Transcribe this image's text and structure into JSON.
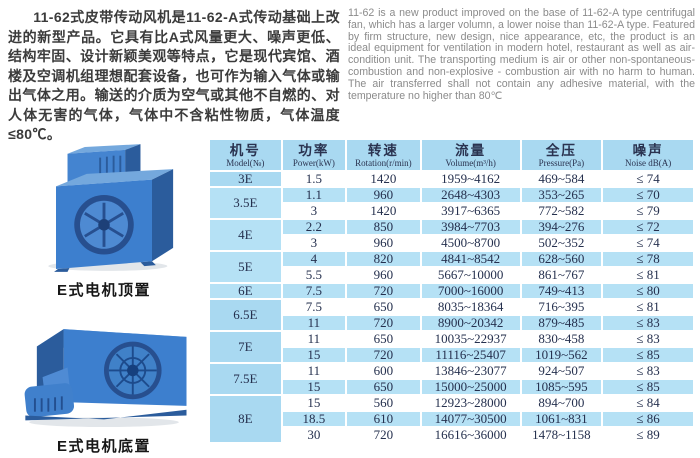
{
  "intro": {
    "chinese": "11-62式皮带传动风机是11-62-A式传动基础上改进的新型产品。它具有比A式风量更大、噪声更低、结构牢固、设计新颖美观等特点，它是现代宾馆、酒楼及空调机组理想配套设备，也可作为输入气体或输出气体之用。输送的介质为空气或其他不自燃的、对人体无害的气体，气体中不含粘性物质，气体温度≤80℃。",
    "english": "11-62 is a new product improved on the base of 11-62-A type centrifugal fan, which has a larger volumn, a lower noise than 11-62-A type. Featured by firm structure, new design, nice appearance, etc, the product is an ideal equipment for ventilation in modern hotel, restaurant as well as air-condition unit. The transporting medium is air or other non-spontaneous-combustion and non-explosive - combustion air with no harm to human. The air transferred shall not contain any adhesive material, with the temperature no higher than 80℃"
  },
  "figures": [
    {
      "caption": "E式电机顶置"
    },
    {
      "caption": "E式电机底置"
    }
  ],
  "table": {
    "columns": [
      {
        "zh": "机号",
        "en": "Model(№)"
      },
      {
        "zh": "功率",
        "en": "Power(kW)"
      },
      {
        "zh": "转速",
        "en": "Rotation(r/min)"
      },
      {
        "zh": "流量",
        "en": "Volume(m³/h)"
      },
      {
        "zh": "全压",
        "en": "Pressure(Pa)"
      },
      {
        "zh": "噪声",
        "en": "Noise dB(A)"
      }
    ],
    "groups": [
      {
        "model": "3E",
        "rows": [
          [
            "1.5",
            "1420",
            "1959~4162",
            "469~584",
            "≤ 74"
          ]
        ]
      },
      {
        "model": "3.5E",
        "rows": [
          [
            "1.1",
            "960",
            "2648~4303",
            "353~265",
            "≤ 70"
          ],
          [
            "3",
            "1420",
            "3917~6365",
            "772~582",
            "≤ 79"
          ]
        ]
      },
      {
        "model": "4E",
        "rows": [
          [
            "2.2",
            "850",
            "3984~7703",
            "394~276",
            "≤ 72"
          ],
          [
            "3",
            "960",
            "4500~8700",
            "502~352",
            "≤ 74"
          ]
        ]
      },
      {
        "model": "5E",
        "rows": [
          [
            "4",
            "820",
            "4841~8542",
            "628~560",
            "≤ 78"
          ],
          [
            "5.5",
            "960",
            "5667~10000",
            "861~767",
            "≤ 81"
          ]
        ]
      },
      {
        "model": "6E",
        "rows": [
          [
            "7.5",
            "720",
            "7000~16000",
            "749~413",
            "≤ 80"
          ]
        ]
      },
      {
        "model": "6.5E",
        "rows": [
          [
            "7.5",
            "650",
            "8035~18364",
            "716~395",
            "≤ 81"
          ],
          [
            "11",
            "720",
            "8900~20342",
            "879~485",
            "≤ 83"
          ]
        ]
      },
      {
        "model": "7E",
        "rows": [
          [
            "11",
            "650",
            "10035~22937",
            "830~458",
            "≤ 83"
          ],
          [
            "15",
            "720",
            "11116~25407",
            "1019~562",
            "≤ 85"
          ]
        ]
      },
      {
        "model": "7.5E",
        "rows": [
          [
            "11",
            "600",
            "13846~23077",
            "924~507",
            "≤ 83"
          ],
          [
            "15",
            "650",
            "15000~25000",
            "1085~595",
            "≤ 85"
          ]
        ]
      },
      {
        "model": "8E",
        "rows": [
          [
            "15",
            "560",
            "12923~28000",
            "894~700",
            "≤ 84"
          ],
          [
            "18.5",
            "610",
            "14077~30500",
            "1061~831",
            "≤ 86"
          ],
          [
            "30",
            "720",
            "16616~36000",
            "1478~1158",
            "≤ 89"
          ]
        ]
      }
    ]
  },
  "colors": {
    "header_blue": "#a9d9f1",
    "alt_row_blue": "#b5e1f5",
    "table_text_navy": "#25304e",
    "fan_blue": "#3d7fce",
    "fan_blue_dark": "#2b5c9c",
    "fan_blue_light": "#74a8dd",
    "english_text_gray": "#8b8b8b"
  }
}
